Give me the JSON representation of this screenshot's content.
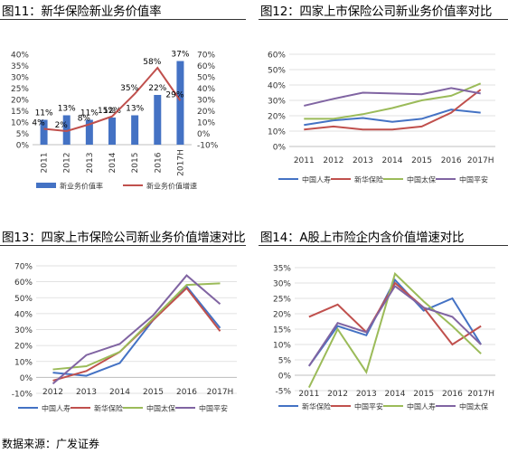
{
  "source": "数据来源：广发证券",
  "charts": [
    {
      "title": "图11：新华保险新业务价值率",
      "type": "bar+line"
    },
    {
      "title": "图12：四家上市保险公司新业务价值率对比",
      "type": "line"
    },
    {
      "title": "图13：四家上市保险公司新业务价值增速对比",
      "type": "line"
    },
    {
      "title": "图14：A股上市险企内含价值增速对比",
      "type": "line"
    }
  ],
  "chart_data": [
    {
      "type": "bar+line",
      "title": "图11：新华保险新业务价值率",
      "categories": [
        "2011",
        "2012",
        "2013",
        "2014",
        "2015",
        "2016",
        "2017H"
      ],
      "y_left_ticks": [
        "0%",
        "5%",
        "10%",
        "15%",
        "20%",
        "25%",
        "30%",
        "35%",
        "40%"
      ],
      "y_right_ticks": [
        "-10%",
        "0%",
        "10%",
        "20%",
        "30%",
        "40%",
        "50%",
        "60%",
        "70%"
      ],
      "ylim_left": [
        0,
        40
      ],
      "ylim_right": [
        -10,
        70
      ],
      "series": [
        {
          "name": "新业务价值率",
          "axis": "left",
          "kind": "bar",
          "color": "#4472C4",
          "values": [
            11,
            13,
            11,
            12,
            13,
            22,
            37
          ],
          "labels": [
            "11%",
            "13%",
            "11%",
            "12%",
            "13%",
            "22%",
            "37%"
          ]
        },
        {
          "name": "新业务价值增速",
          "axis": "right",
          "kind": "line",
          "color": "#C0504D",
          "values": [
            4,
            2,
            8,
            15,
            35,
            58,
            29
          ],
          "labels": [
            "4%",
            "2%",
            "8%",
            "15%",
            "35%",
            "58%",
            "29%"
          ]
        }
      ],
      "legend_position": "bottom"
    },
    {
      "type": "line",
      "title": "图12：四家上市保险公司新业务价值率对比",
      "categories": [
        "2011",
        "2012",
        "2013",
        "2014",
        "2015",
        "2016",
        "2017H"
      ],
      "y_ticks": [
        "0%",
        "10%",
        "20%",
        "30%",
        "40%",
        "50%",
        "60%"
      ],
      "ylim": [
        0,
        60
      ],
      "series": [
        {
          "name": "中国人寿",
          "color": "#4472C4",
          "values": [
            14,
            17,
            18.5,
            16,
            18,
            24,
            22
          ]
        },
        {
          "name": "新华保险",
          "color": "#C0504D",
          "values": [
            11,
            13,
            11,
            11,
            13,
            22,
            37
          ]
        },
        {
          "name": "中国太保",
          "color": "#9BBB59",
          "values": [
            18,
            18,
            21,
            25,
            30,
            33,
            41
          ]
        },
        {
          "name": "中国平安",
          "color": "#8064A2",
          "values": [
            26.5,
            31,
            35,
            34.5,
            34,
            38,
            34.5
          ]
        }
      ],
      "legend_position": "bottom"
    },
    {
      "type": "line",
      "title": "图13：四家上市保险公司新业务价值增速对比",
      "categories": [
        "2012",
        "2013",
        "2014",
        "2015",
        "2016",
        "2017H"
      ],
      "y_ticks": [
        "-10%",
        "0%",
        "10%",
        "20%",
        "30%",
        "40%",
        "50%",
        "60%",
        "70%"
      ],
      "ylim": [
        -10,
        70
      ],
      "series": [
        {
          "name": "中国人寿",
          "color": "#4472C4",
          "values": [
            3,
            1,
            9,
            36,
            57,
            31
          ]
        },
        {
          "name": "新华保险",
          "color": "#C0504D",
          "values": [
            -2,
            4,
            16,
            36,
            56,
            29
          ]
        },
        {
          "name": "中国太保",
          "color": "#9BBB59",
          "values": [
            5,
            7,
            16,
            37,
            58,
            59
          ]
        },
        {
          "name": "中国平安",
          "color": "#8064A2",
          "values": [
            -4,
            14,
            21,
            39,
            64,
            46
          ]
        }
      ],
      "legend_position": "bottom"
    },
    {
      "type": "line",
      "title": "图14：A股上市险企内含价值增速对比",
      "categories": [
        "2011",
        "2012",
        "2013",
        "2014",
        "2015",
        "2016",
        "2017H"
      ],
      "y_ticks": [
        "-5%",
        "0%",
        "5%",
        "10%",
        "15%",
        "20%",
        "25%",
        "30%",
        "35%"
      ],
      "ylim": [
        -5,
        35
      ],
      "series": [
        {
          "name": "新华保险",
          "color": "#4472C4",
          "values": [
            3,
            16,
            13,
            31,
            21,
            25,
            10
          ]
        },
        {
          "name": "中国平安",
          "color": "#C0504D",
          "values": [
            19,
            23,
            14,
            30,
            22,
            10,
            16
          ]
        },
        {
          "name": "中国人寿",
          "color": "#9BBB59",
          "values": [
            -4,
            15,
            1,
            33,
            24,
            16,
            7
          ]
        },
        {
          "name": "中国太保",
          "color": "#8064A2",
          "values": [
            3,
            17,
            14,
            29,
            22,
            19,
            10
          ]
        }
      ],
      "legend_position": "bottom"
    }
  ]
}
